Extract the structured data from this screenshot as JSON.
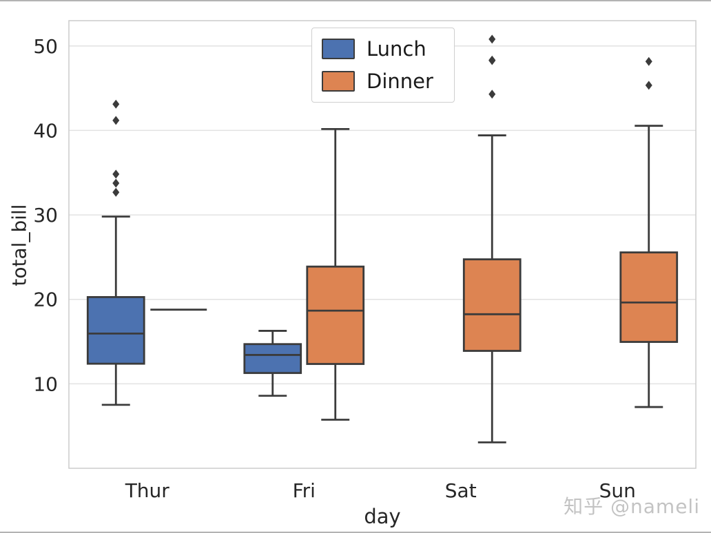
{
  "watermark": {
    "text": "知乎 @nameli"
  },
  "chart_data": {
    "type": "boxplot",
    "title": "",
    "xlabel": "day",
    "ylabel": "total_bill",
    "categories": [
      "Thur",
      "Fri",
      "Sat",
      "Sun"
    ],
    "ylim": [
      0,
      53
    ],
    "yticks": [
      10,
      20,
      30,
      40,
      50
    ],
    "grid": "horizontal",
    "style": {
      "background": "#ffffff",
      "grid_color": "#e2e2e2",
      "frame_color": "#cccccc",
      "line_color": "#3b3b3b",
      "text_color": "#262626"
    },
    "legend": {
      "position": "upper center",
      "entries": [
        {
          "label": "Lunch",
          "color": "#4C72B0"
        },
        {
          "label": "Dinner",
          "color": "#DD8452"
        }
      ]
    },
    "series": [
      {
        "name": "Lunch",
        "color": "#4C72B0",
        "boxes": [
          {
            "category": "Thur",
            "whisker_low": 7.51,
            "q1": 12.38,
            "median": 15.95,
            "q3": 20.27,
            "whisker_high": 29.8,
            "outliers": [
              32.68,
              33.76,
              34.83,
              41.19,
              43.11
            ]
          },
          {
            "category": "Fri",
            "whisker_low": 8.58,
            "q1": 11.28,
            "median": 13.42,
            "q3": 14.7,
            "whisker_high": 16.27,
            "outliers": []
          },
          null,
          null
        ]
      },
      {
        "name": "Dinner",
        "color": "#DD8452",
        "boxes": [
          {
            "category": "Thur",
            "whisker_low": 18.78,
            "q1": 18.78,
            "median": 18.78,
            "q3": 18.78,
            "whisker_high": 18.78,
            "outliers": []
          },
          {
            "category": "Fri",
            "whisker_low": 5.75,
            "q1": 12.35,
            "median": 18.66,
            "q3": 23.88,
            "whisker_high": 40.17,
            "outliers": []
          },
          {
            "category": "Sat",
            "whisker_low": 3.07,
            "q1": 13.9,
            "median": 18.24,
            "q3": 24.74,
            "whisker_high": 39.42,
            "outliers": [
              44.3,
              48.27,
              48.33,
              50.81
            ]
          },
          {
            "category": "Sun",
            "whisker_low": 7.25,
            "q1": 14.96,
            "median": 19.63,
            "q3": 25.56,
            "whisker_high": 40.55,
            "outliers": [
              45.35,
              48.17
            ]
          }
        ]
      }
    ]
  }
}
